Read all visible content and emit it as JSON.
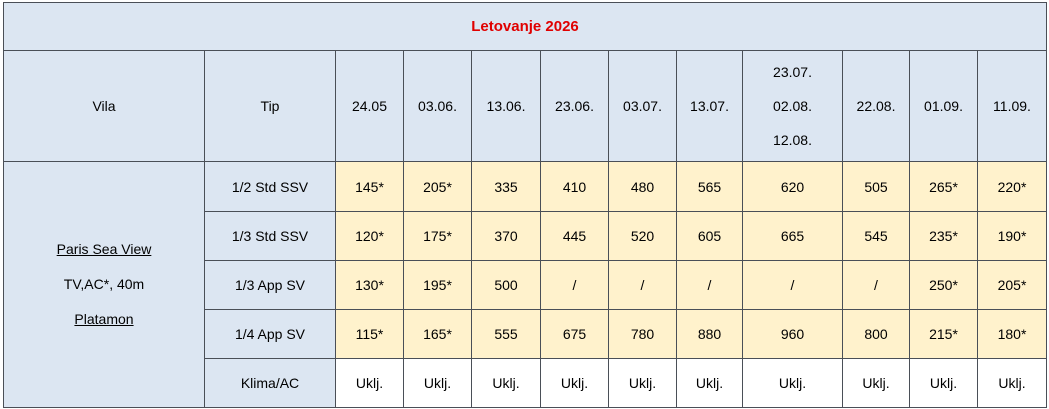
{
  "title": "Letovanje 2026",
  "header": {
    "vila": "Vila",
    "tip": "Tip",
    "dates": [
      [
        "24.05"
      ],
      [
        "03.06."
      ],
      [
        "13.06."
      ],
      [
        "23.06."
      ],
      [
        "03.07."
      ],
      [
        "13.07."
      ],
      [
        "23.07.",
        "02.08.",
        "12.08."
      ],
      [
        "22.08."
      ],
      [
        "01.09."
      ],
      [
        "11.09."
      ]
    ]
  },
  "villa": [
    "Paris Sea View",
    "TV,AC*, 40m",
    "Platamon"
  ],
  "rows": [
    {
      "type": "1/2 Std SSV",
      "prices": [
        "145*",
        "205*",
        "335",
        "410",
        "480",
        "565",
        "620",
        "505",
        "265*",
        "220*"
      ]
    },
    {
      "type": "1/3 Std SSV",
      "prices": [
        "120*",
        "175*",
        "370",
        "445",
        "520",
        "605",
        "665",
        "545",
        "235*",
        "190*"
      ]
    },
    {
      "type": "1/3 App SV",
      "prices": [
        "130*",
        "195*",
        "500",
        "/",
        "/",
        "/",
        "/",
        "/",
        "250*",
        "205*"
      ]
    },
    {
      "type": "1/4 App SV",
      "prices": [
        "115*",
        "165*",
        "555",
        "675",
        "780",
        "880",
        "960",
        "800",
        "215*",
        "180*"
      ]
    },
    {
      "type": "Klima/AC",
      "prices": [
        "Uklj.",
        "Uklj.",
        "Uklj.",
        "Uklj.",
        "Uklj.",
        "Uklj.",
        "Uklj.",
        "Uklj.",
        "Uklj.",
        "Uklj."
      ]
    }
  ]
}
